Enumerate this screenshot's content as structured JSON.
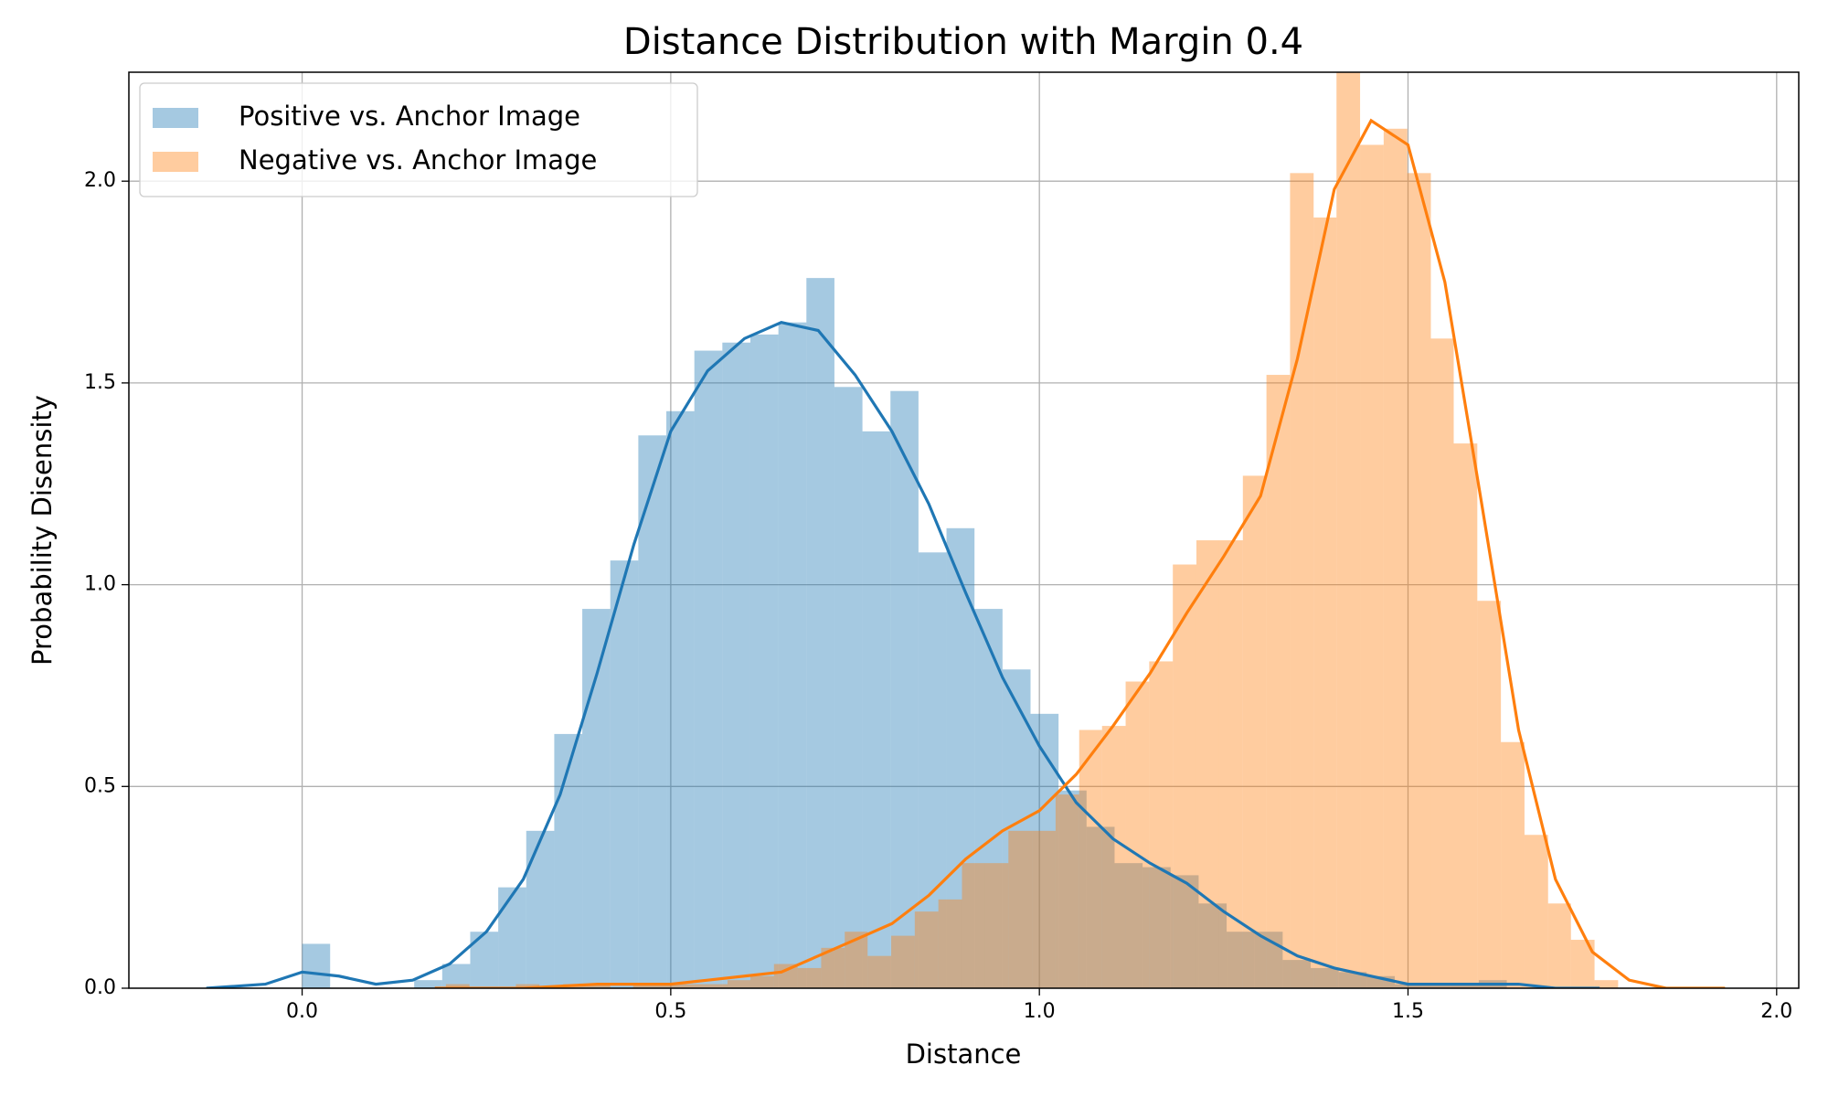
{
  "chart_data": {
    "type": "histogram",
    "title": "Distance Distribution with Margin 0.4",
    "x_label": "Distance",
    "y_label": "Probability Disensity",
    "xlim": [
      -0.235,
      2.03
    ],
    "ylim": [
      0,
      2.27
    ],
    "xticks": [
      {
        "value": 0,
        "label": "0.0"
      },
      0.5,
      {
        "value": 1,
        "label": "1.0"
      },
      1.5,
      {
        "value": 2,
        "label": "2.0"
      }
    ],
    "yticks": [
      {
        "value": 0,
        "label": "0.0"
      },
      0.5,
      {
        "value": 1,
        "label": "1.0"
      },
      1.5,
      {
        "value": 2,
        "label": "2.0"
      }
    ],
    "grid": true,
    "legend": "upper left",
    "series": [
      {
        "name": "Positive vs. Anchor Image",
        "color": "#1f77b4",
        "bins": [
          0,
          0.038,
          0.076,
          0.114,
          0.152,
          0.19,
          0.228,
          0.266,
          0.304,
          0.342,
          0.38,
          0.418,
          0.456,
          0.494,
          0.532,
          0.57,
          0.608,
          0.646,
          0.684,
          0.722,
          0.76,
          0.798,
          0.836,
          0.874,
          0.912,
          0.95,
          0.988,
          1.026,
          1.064,
          1.102,
          1.14,
          1.178,
          1.216,
          1.254,
          1.292,
          1.33,
          1.368,
          1.406,
          1.444,
          1.482,
          1.52,
          1.558,
          1.596,
          1.634
        ],
        "values": [
          0.11,
          0,
          0,
          0,
          0.02,
          0.06,
          0.14,
          0.25,
          0.39,
          0.63,
          0.94,
          1.06,
          1.37,
          1.43,
          1.58,
          1.6,
          1.62,
          1.65,
          1.76,
          1.49,
          1.38,
          1.48,
          1.08,
          1.14,
          0.94,
          0.79,
          0.68,
          0.49,
          0.4,
          0.31,
          0.3,
          0.28,
          0.21,
          0.14,
          0.14,
          0.07,
          0.05,
          0.04,
          0.03,
          0.01,
          0.01,
          0.01,
          0.02
        ],
        "kde": {
          "x": [
            -0.13,
            -0.05,
            0,
            0.05,
            0.1,
            0.15,
            0.2,
            0.25,
            0.3,
            0.35,
            0.4,
            0.45,
            0.5,
            0.55,
            0.6,
            0.65,
            0.7,
            0.75,
            0.8,
            0.85,
            0.9,
            0.95,
            1.0,
            1.05,
            1.1,
            1.15,
            1.2,
            1.25,
            1.3,
            1.35,
            1.4,
            1.45,
            1.5,
            1.55,
            1.6,
            1.65,
            1.7,
            1.76
          ],
          "y": [
            0,
            0.01,
            0.04,
            0.03,
            0.01,
            0.02,
            0.06,
            0.14,
            0.27,
            0.48,
            0.78,
            1.1,
            1.38,
            1.53,
            1.61,
            1.65,
            1.63,
            1.52,
            1.38,
            1.2,
            0.98,
            0.77,
            0.6,
            0.46,
            0.37,
            0.31,
            0.26,
            0.19,
            0.13,
            0.08,
            0.05,
            0.03,
            0.01,
            0.01,
            0.01,
            0.01,
            0,
            0
          ]
        }
      },
      {
        "name": "Negative vs. Anchor Image",
        "color": "#ff7f0e",
        "bins": [
          0.195,
          0.227,
          0.259,
          0.29,
          0.322,
          0.354,
          0.386,
          0.418,
          0.449,
          0.481,
          0.513,
          0.545,
          0.577,
          0.608,
          0.64,
          0.672,
          0.704,
          0.736,
          0.767,
          0.799,
          0.831,
          0.863,
          0.895,
          0.926,
          0.958,
          0.99,
          1.022,
          1.054,
          1.085,
          1.117,
          1.149,
          1.181,
          1.213,
          1.244,
          1.276,
          1.308,
          1.34,
          1.372,
          1.403,
          1.435,
          1.467,
          1.499,
          1.531,
          1.562,
          1.594,
          1.626,
          1.658,
          1.69,
          1.721,
          1.753,
          1.785
        ],
        "values": [
          0.01,
          0,
          0,
          0.01,
          0,
          0.01,
          0.01,
          0,
          0.01,
          0.01,
          0.01,
          0.01,
          0.02,
          0.03,
          0.06,
          0.05,
          0.1,
          0.14,
          0.08,
          0.13,
          0.19,
          0.22,
          0.31,
          0.31,
          0.39,
          0.39,
          0.48,
          0.64,
          0.65,
          0.76,
          0.81,
          1.05,
          1.11,
          1.11,
          1.27,
          1.52,
          2.02,
          1.91,
          2.3,
          2.09,
          2.13,
          2.02,
          1.61,
          1.35,
          0.96,
          0.61,
          0.38,
          0.21,
          0.12,
          0.02
        ],
        "kde": {
          "x": [
            0.18,
            0.3,
            0.4,
            0.5,
            0.55,
            0.6,
            0.65,
            0.7,
            0.75,
            0.8,
            0.85,
            0.9,
            0.95,
            1.0,
            1.05,
            1.1,
            1.15,
            1.2,
            1.25,
            1.3,
            1.35,
            1.4,
            1.45,
            1.5,
            1.55,
            1.6,
            1.65,
            1.7,
            1.75,
            1.8,
            1.85,
            1.93
          ],
          "y": [
            0,
            0,
            0.01,
            0.01,
            0.02,
            0.03,
            0.04,
            0.08,
            0.12,
            0.16,
            0.23,
            0.32,
            0.39,
            0.44,
            0.53,
            0.65,
            0.78,
            0.93,
            1.07,
            1.22,
            1.56,
            1.98,
            2.15,
            2.09,
            1.75,
            1.2,
            0.64,
            0.27,
            0.09,
            0.02,
            0,
            0
          ]
        }
      }
    ]
  }
}
